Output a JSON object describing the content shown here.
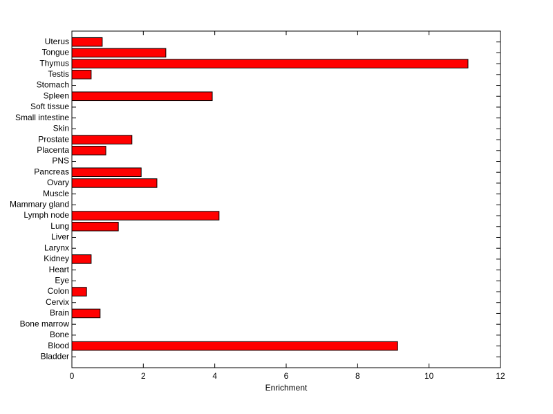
{
  "chart_data": {
    "type": "barh",
    "xlabel": "Enrichment",
    "categories": [
      "Bladder",
      "Blood",
      "Bone",
      "Bone marrow",
      "Brain",
      "Cervix",
      "Colon",
      "Eye",
      "Heart",
      "Kidney",
      "Larynx",
      "Liver",
      "Lung",
      "Lymph node",
      "Mammary gland",
      "Muscle",
      "Ovary",
      "Pancreas",
      "PNS",
      "Placenta",
      "Prostate",
      "Skin",
      "Small intestine",
      "Soft tissue",
      "Spleen",
      "Stomach",
      "Testis",
      "Thymus",
      "Tongue",
      "Uterus"
    ],
    "values": [
      0,
      9.12,
      0,
      0,
      0.79,
      0,
      0.41,
      0,
      0,
      0.54,
      0,
      0,
      1.3,
      4.12,
      0,
      0,
      2.38,
      1.94,
      0,
      0.95,
      1.68,
      0,
      0,
      0,
      3.93,
      0,
      0.54,
      11.09,
      2.63,
      0.85
    ],
    "color": "#ff0000",
    "xlim": [
      0,
      12
    ],
    "xticks": [
      0,
      2,
      4,
      6,
      8,
      10,
      12
    ]
  }
}
